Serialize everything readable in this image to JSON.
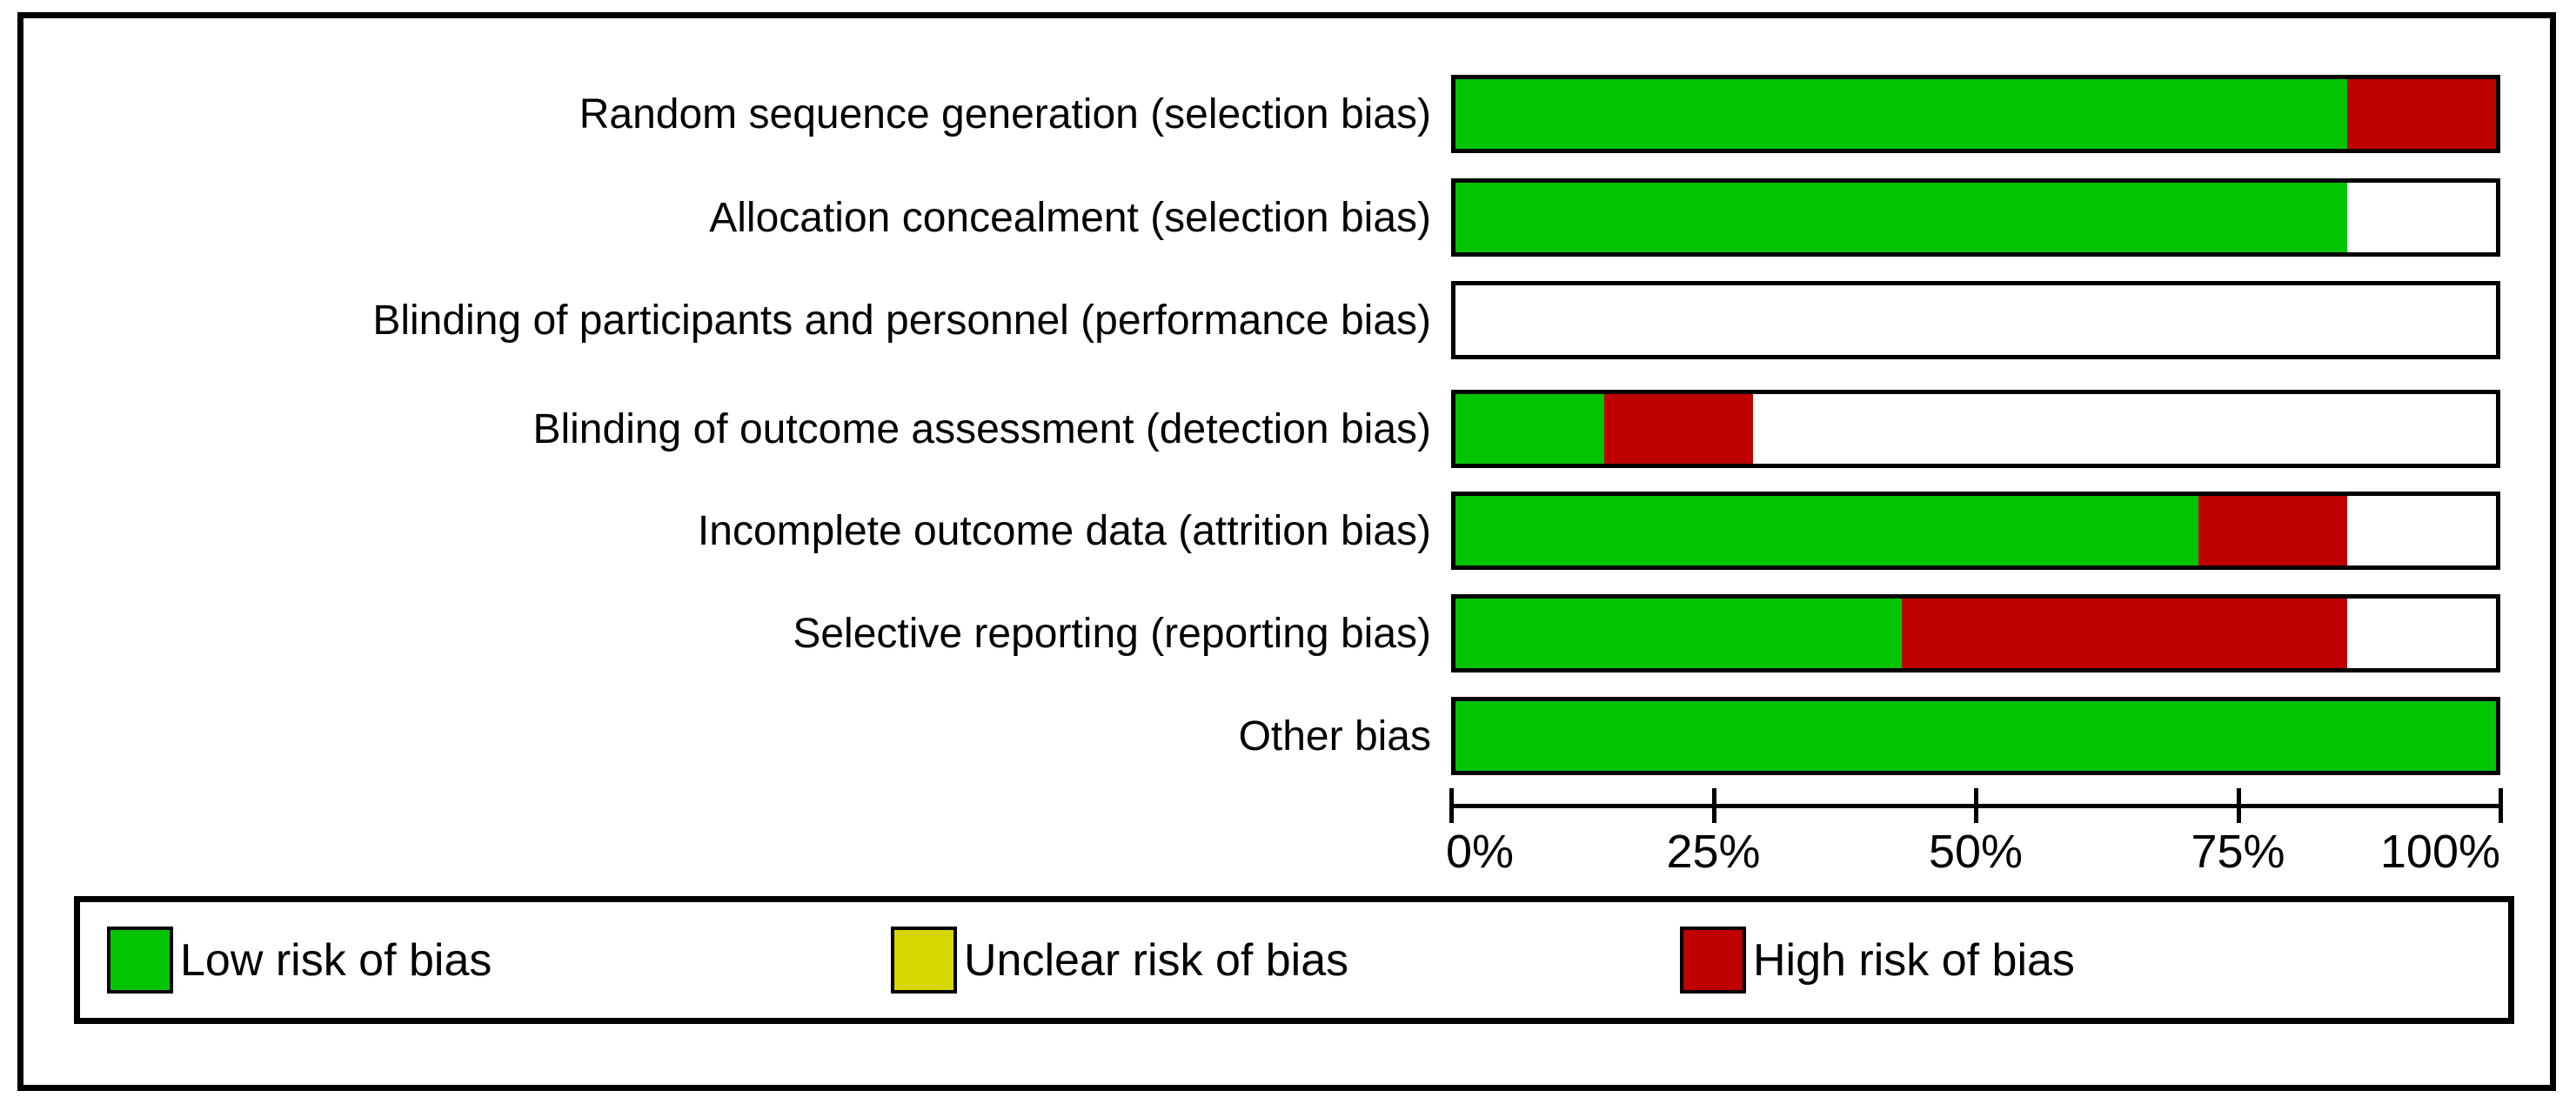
{
  "colors": {
    "low": "#02c402",
    "unclear": "#d6d600",
    "high": "#bf0000",
    "blank": "#ffffff",
    "border": "#000000",
    "background": "#ffffff"
  },
  "chart_data": {
    "type": "bar",
    "subtype": "horizontal-stacked-percentage",
    "title": "",
    "xlabel": "",
    "ylabel": "",
    "xlim": [
      0,
      100
    ],
    "grid": false,
    "x_tick_labels": [
      "0%",
      "25%",
      "50%",
      "75%",
      "100%"
    ],
    "x_tick_values": [
      0,
      25,
      50,
      75,
      100
    ],
    "categories": [
      "Random sequence generation (selection bias)",
      "Allocation concealment (selection bias)",
      "Blinding of participants and personnel (performance bias)",
      "Blinding of outcome assessment (detection bias)",
      "Incomplete outcome data (attrition bias)",
      "Selective reporting (reporting bias)",
      "Other bias"
    ],
    "series": [
      {
        "name": "Low risk of bias",
        "color_key": "low",
        "values": [
          85.71,
          85.71,
          0,
          14.29,
          71.43,
          42.86,
          100
        ]
      },
      {
        "name": "Unclear risk of bias",
        "color_key": "unclear",
        "values": [
          0,
          0,
          0,
          0,
          0,
          0,
          0
        ]
      },
      {
        "name": "High risk of bias",
        "color_key": "high",
        "values": [
          14.29,
          0,
          0,
          14.29,
          14.29,
          42.86,
          0
        ]
      }
    ],
    "blank_remainder_pct": [
      0,
      14.29,
      100,
      71.42,
      14.28,
      14.28,
      0
    ],
    "legend_position": "bottom"
  },
  "legend": {
    "items": [
      {
        "label": "Low risk of bias",
        "color_key": "low"
      },
      {
        "label": "Unclear risk of bias",
        "color_key": "unclear"
      },
      {
        "label": "High risk of bias",
        "color_key": "high"
      }
    ]
  }
}
